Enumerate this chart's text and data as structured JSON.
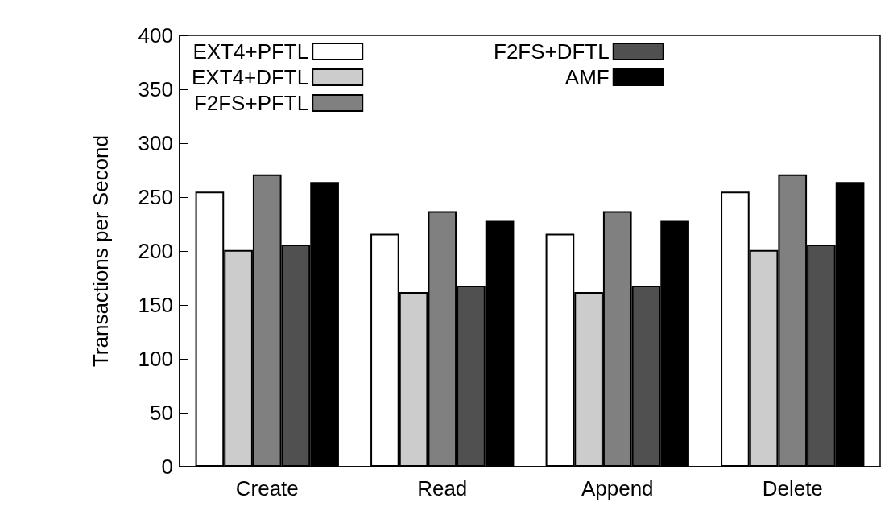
{
  "chart_data": {
    "type": "bar",
    "ylabel": "Transactions per Second",
    "categories": [
      "Create",
      "Read",
      "Append",
      "Delete"
    ],
    "series": [
      {
        "name": "EXT4+PFTL",
        "color": "#ffffff",
        "values": [
          255,
          216,
          216,
          255
        ]
      },
      {
        "name": "EXT4+DFTL",
        "color": "#cccccc",
        "values": [
          201,
          162,
          162,
          201
        ]
      },
      {
        "name": "F2FS+PFTL",
        "color": "#808080",
        "values": [
          271,
          237,
          237,
          271
        ]
      },
      {
        "name": "F2FS+DFTL",
        "color": "#505050",
        "values": [
          206,
          168,
          168,
          206
        ]
      },
      {
        "name": "AMF",
        "color": "#000000",
        "values": [
          264,
          228,
          228,
          264
        ]
      }
    ],
    "ylim": [
      0,
      400
    ],
    "yticks": [
      0,
      50,
      100,
      150,
      200,
      250,
      300,
      350,
      400
    ],
    "grid": false,
    "legend": "top left"
  }
}
